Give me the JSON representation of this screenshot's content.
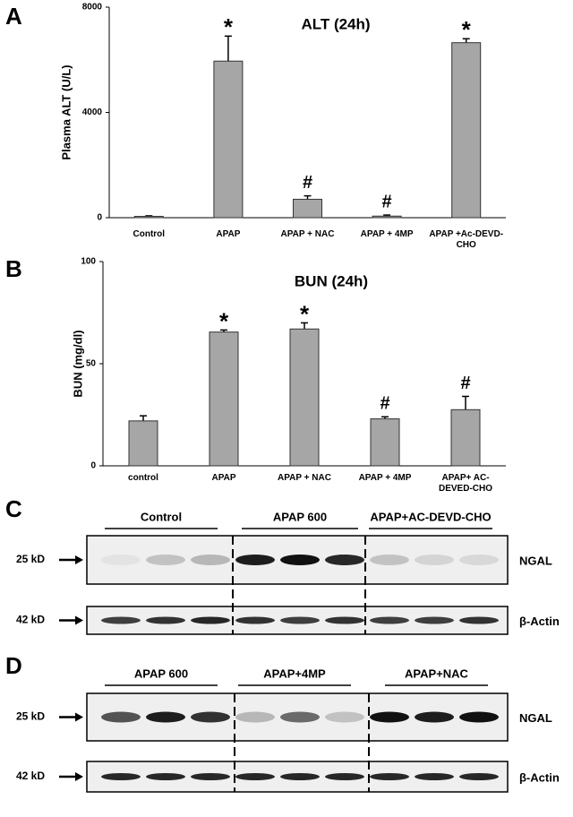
{
  "chart_data": [
    {
      "type": "bar",
      "title": "ALT (24h)",
      "y_label": "Plasma ALT (U/L)",
      "categories": [
        "Control",
        "APAP",
        "APAP + NAC",
        "APAP + 4MP",
        "APAP +Ac-DEVD-CHO"
      ],
      "values": [
        50,
        5950,
        700,
        60,
        6650
      ],
      "errors": [
        20,
        950,
        130,
        40,
        150
      ],
      "significance": [
        null,
        "*",
        "#",
        "#",
        "*"
      ],
      "color": "#a6a6a6",
      "ylim": [
        0,
        8000
      ],
      "yticks": [
        0,
        4000,
        8000
      ]
    },
    {
      "type": "bar",
      "title": "BUN (24h)",
      "y_label": "BUN (mg/dl)",
      "categories": [
        "control",
        "APAP",
        "APAP + NAC",
        "APAP + 4MP",
        "APAP+ AC-DEVED-CHO"
      ],
      "values": [
        22,
        65.5,
        67,
        23,
        27.5
      ],
      "errors": [
        2.5,
        1,
        3,
        1,
        6.5
      ],
      "significance": [
        null,
        "*",
        "*",
        "#",
        "#"
      ],
      "color": "#a6a6a6",
      "ylim": [
        0,
        100
      ],
      "yticks": [
        0,
        50,
        100
      ]
    }
  ],
  "panel_letters": [
    "A",
    "B",
    "C",
    "D"
  ],
  "blots": [
    {
      "groups": [
        "Control",
        "APAP 600",
        "APAP+AC-DEVD-CHO"
      ],
      "rows": [
        {
          "marker": "25 kD",
          "protein": "NGAL"
        },
        {
          "marker": "42 kD",
          "protein": "β-Actin"
        }
      ]
    },
    {
      "groups": [
        "APAP 600",
        "APAP+4MP",
        "APAP+NAC"
      ],
      "rows": [
        {
          "marker": "25 kD",
          "protein": "NGAL"
        },
        {
          "marker": "42 kD",
          "protein": "β-Actin"
        }
      ]
    }
  ]
}
